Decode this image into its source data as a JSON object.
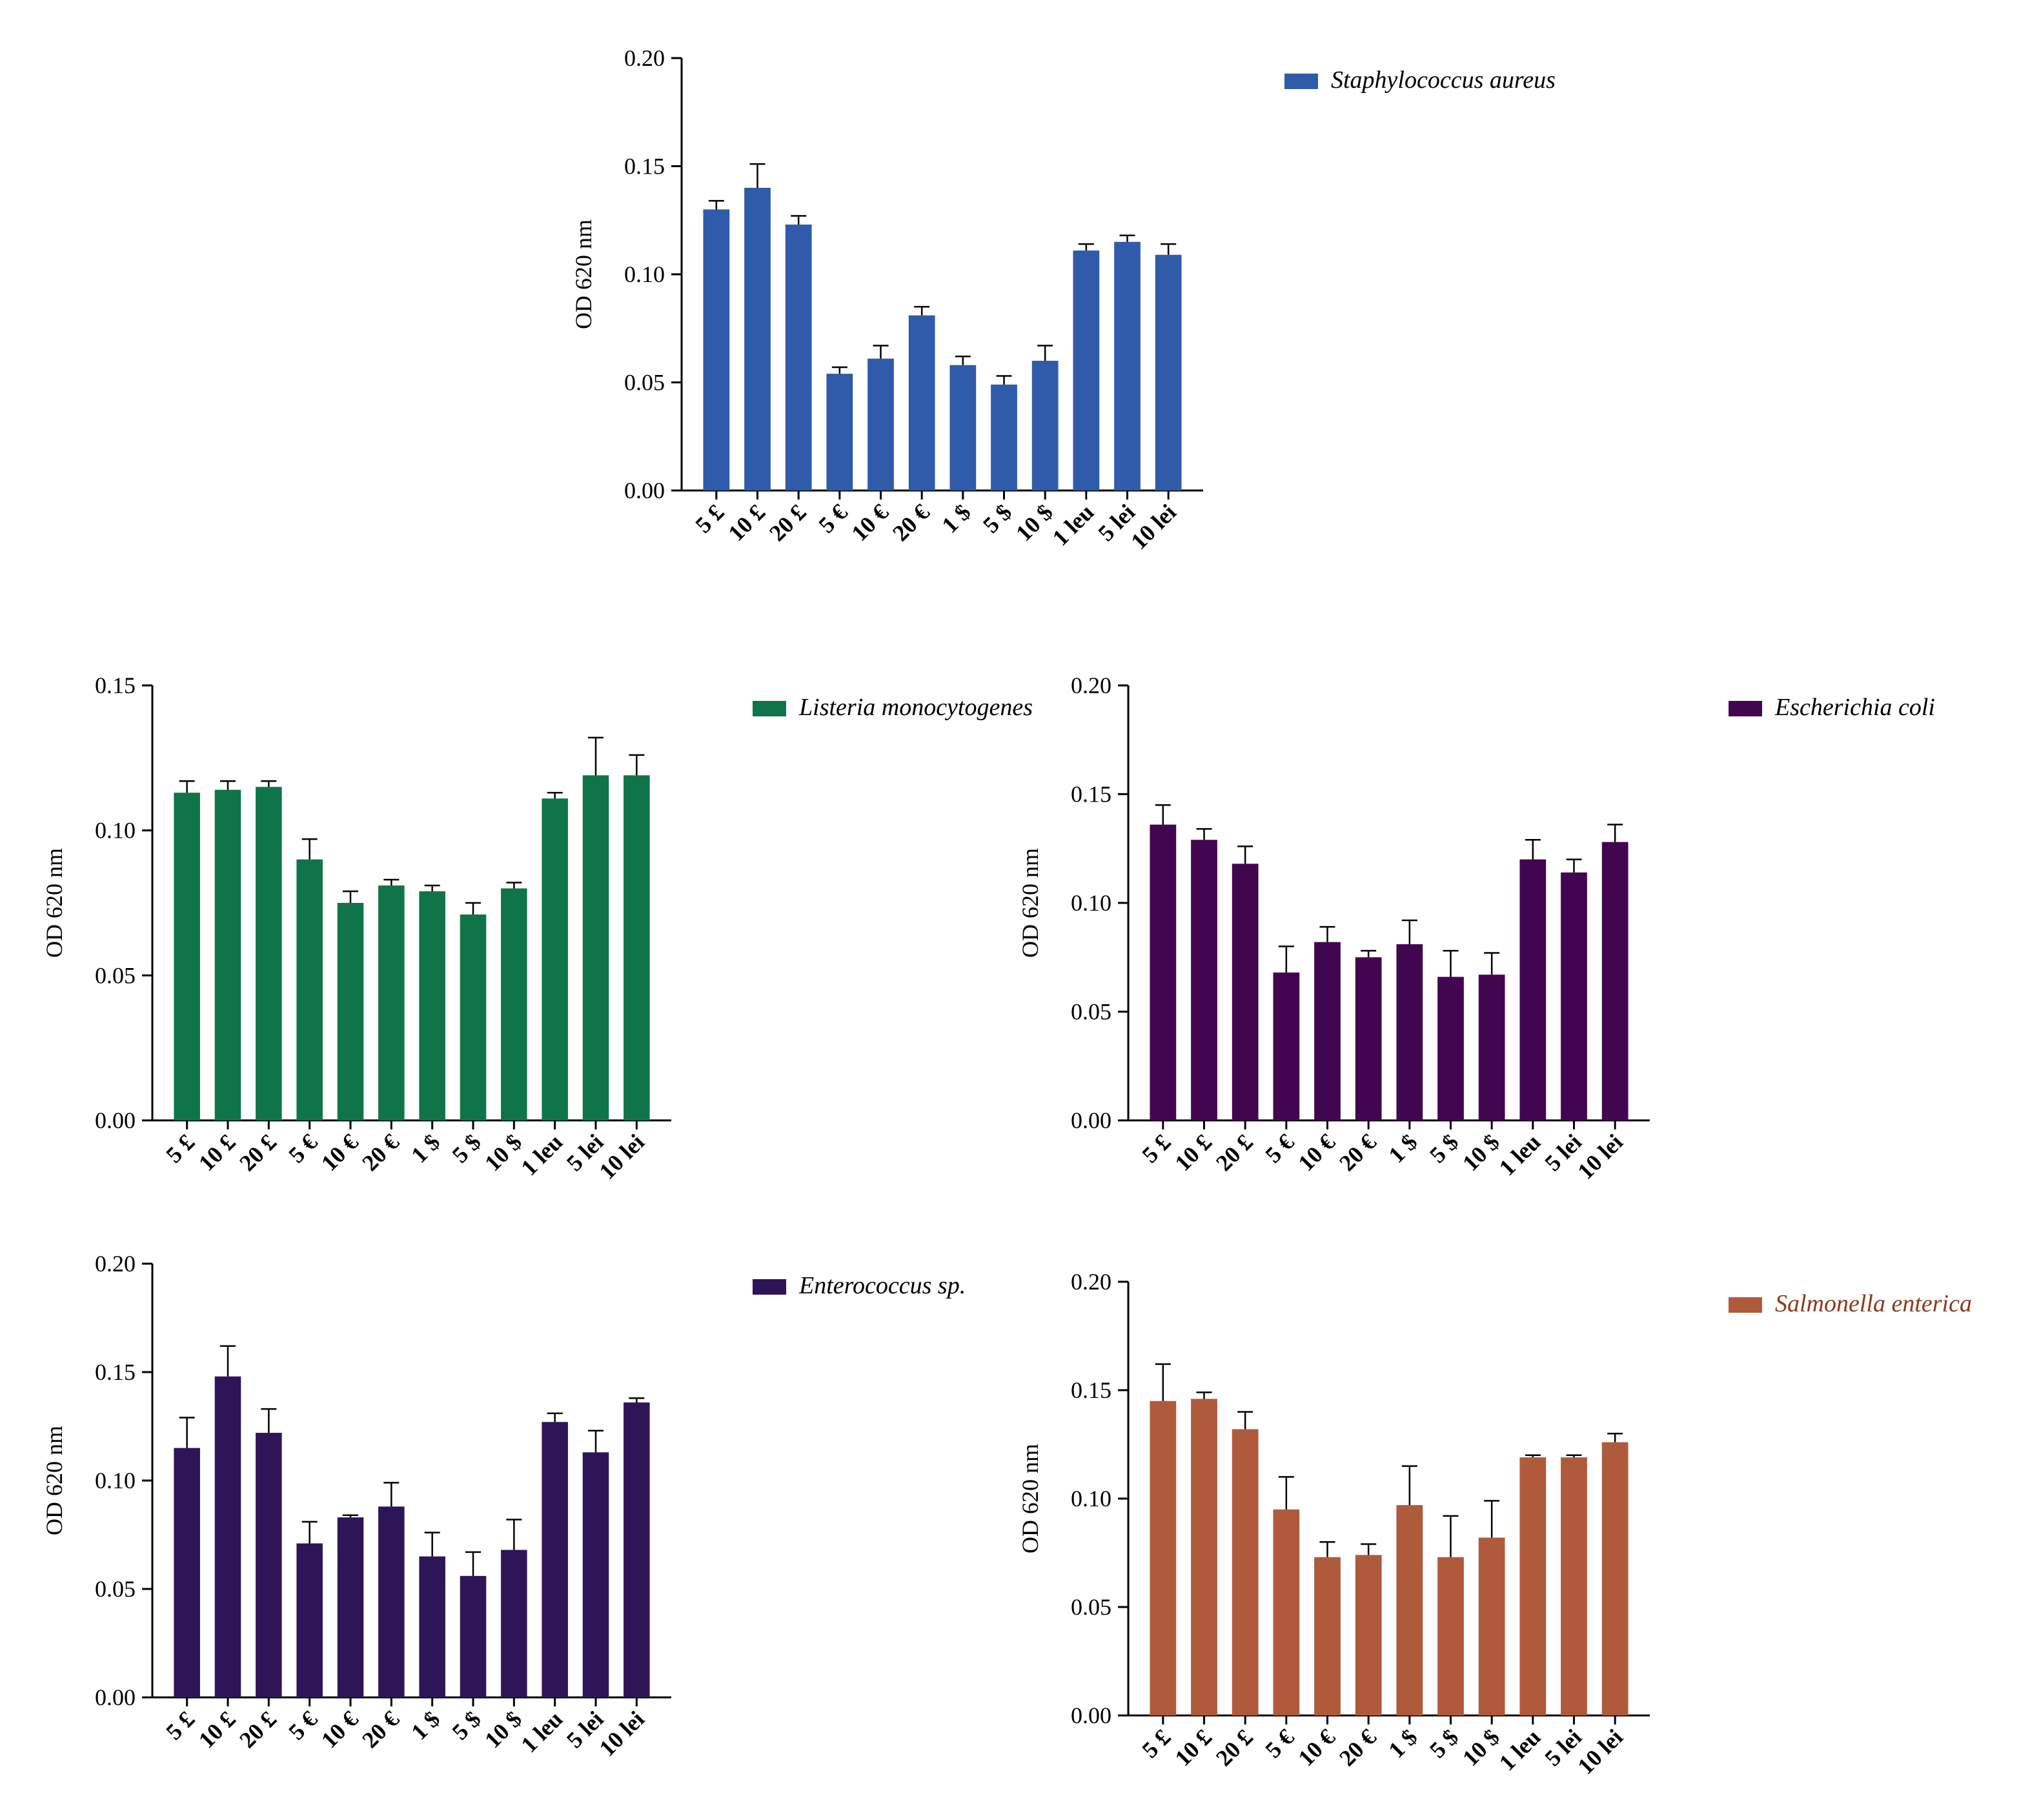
{
  "chart_data": [
    {
      "id": "staph",
      "type": "bar",
      "title": "",
      "xlabel": "",
      "ylabel": "OD 620 nm",
      "ylim": [
        0,
        0.2
      ],
      "yticks": [
        "0.00",
        "0.05",
        "0.10",
        "0.15",
        "0.20"
      ],
      "ytick_values": [
        0,
        0.05,
        0.1,
        0.15,
        0.2
      ],
      "categories": [
        "5 £",
        "10 £",
        "20 £",
        "5 €",
        "10 €",
        "20 €",
        "1 $",
        "5 $",
        "10 $",
        "1 leu",
        "5 lei",
        "10 lei"
      ],
      "series": [
        {
          "name": "Staphylococcus aureus",
          "color": "#2F5BAA",
          "values": [
            0.13,
            0.14,
            0.123,
            0.054,
            0.061,
            0.081,
            0.058,
            0.049,
            0.06,
            0.111,
            0.115,
            0.109
          ],
          "errors": [
            0.004,
            0.011,
            0.004,
            0.003,
            0.006,
            0.004,
            0.004,
            0.004,
            0.007,
            0.003,
            0.003,
            0.005
          ]
        }
      ],
      "legend": "top-right",
      "grid": false
    },
    {
      "id": "listeria",
      "type": "bar",
      "title": "",
      "xlabel": "",
      "ylabel": "OD 620 nm",
      "ylim": [
        0,
        0.15
      ],
      "yticks": [
        "0.00",
        "0.05",
        "0.10",
        "0.15"
      ],
      "ytick_values": [
        0,
        0.05,
        0.1,
        0.15
      ],
      "categories": [
        "5 £",
        "10 £",
        "20 £",
        "5 €",
        "10 €",
        "20 €",
        "1 $",
        "5 $",
        "10 $",
        "1 leu",
        "5 lei",
        "10 lei"
      ],
      "series": [
        {
          "name": "Listeria monocytogenes",
          "color": "#0F7548",
          "values": [
            0.113,
            0.114,
            0.115,
            0.09,
            0.075,
            0.081,
            0.079,
            0.071,
            0.08,
            0.111,
            0.119,
            0.119
          ],
          "errors": [
            0.004,
            0.003,
            0.002,
            0.007,
            0.004,
            0.002,
            0.002,
            0.004,
            0.002,
            0.002,
            0.013,
            0.007
          ]
        }
      ],
      "legend": "top-right",
      "grid": false
    },
    {
      "id": "ecoli",
      "type": "bar",
      "title": "",
      "xlabel": "",
      "ylabel": "OD 620 nm",
      "ylim": [
        0,
        0.2
      ],
      "yticks": [
        "0.00",
        "0.05",
        "0.10",
        "0.15",
        "0.20"
      ],
      "ytick_values": [
        0,
        0.05,
        0.1,
        0.15,
        0.2
      ],
      "categories": [
        "5 £",
        "10 £",
        "20 £",
        "5 €",
        "10 €",
        "20 €",
        "1 $",
        "5 $",
        "10 $",
        "1 leu",
        "5 lei",
        "10 lei"
      ],
      "series": [
        {
          "name": "Escherichia coli",
          "color": "#420650",
          "values": [
            0.136,
            0.129,
            0.118,
            0.068,
            0.082,
            0.075,
            0.081,
            0.066,
            0.067,
            0.12,
            0.114,
            0.128
          ],
          "errors": [
            0.009,
            0.005,
            0.008,
            0.012,
            0.007,
            0.003,
            0.011,
            0.012,
            0.01,
            0.009,
            0.006,
            0.008
          ]
        }
      ],
      "legend": "top-right",
      "grid": false
    },
    {
      "id": "enterococcus",
      "type": "bar",
      "title": "",
      "xlabel": "",
      "ylabel": "OD 620 nm",
      "ylim": [
        0,
        0.2
      ],
      "yticks": [
        "0.00",
        "0.05",
        "0.10",
        "0.15",
        "0.20"
      ],
      "ytick_values": [
        0,
        0.05,
        0.1,
        0.15,
        0.2
      ],
      "categories": [
        "5 £",
        "10 £",
        "20 £",
        "5 €",
        "10 €",
        "20 €",
        "1 $",
        "5 $",
        "10 $",
        "1 leu",
        "5 lei",
        "10 lei"
      ],
      "series": [
        {
          "name": "Enterococcus sp.",
          "color": "#2E1558",
          "values": [
            0.115,
            0.148,
            0.122,
            0.071,
            0.083,
            0.088,
            0.065,
            0.056,
            0.068,
            0.127,
            0.113,
            0.136
          ],
          "errors": [
            0.014,
            0.014,
            0.011,
            0.01,
            0.001,
            0.011,
            0.011,
            0.011,
            0.014,
            0.004,
            0.01,
            0.002
          ]
        }
      ],
      "legend": "top-right",
      "grid": false
    },
    {
      "id": "salmonella",
      "type": "bar",
      "title": "",
      "xlabel": "",
      "ylabel": "OD 620 nm",
      "ylim": [
        0,
        0.2
      ],
      "yticks": [
        "0.00",
        "0.05",
        "0.10",
        "0.15",
        "0.20"
      ],
      "ytick_values": [
        0,
        0.05,
        0.1,
        0.15,
        0.2
      ],
      "categories": [
        "5 £",
        "10 £",
        "20 £",
        "5 €",
        "10 €",
        "20 €",
        "1 $",
        "5 $",
        "10 $",
        "1 leu",
        "5 lei",
        "10 lei"
      ],
      "series": [
        {
          "name": "Salmonella enterica",
          "color": "#B05A3C",
          "legend_text_color": "#8B3A1E",
          "values": [
            0.145,
            0.146,
            0.132,
            0.095,
            0.073,
            0.074,
            0.097,
            0.073,
            0.082,
            0.119,
            0.119,
            0.126
          ],
          "errors": [
            0.017,
            0.003,
            0.008,
            0.015,
            0.007,
            0.005,
            0.018,
            0.019,
            0.017,
            0.001,
            0.001,
            0.004
          ]
        }
      ],
      "legend": "top-right",
      "grid": false
    }
  ]
}
